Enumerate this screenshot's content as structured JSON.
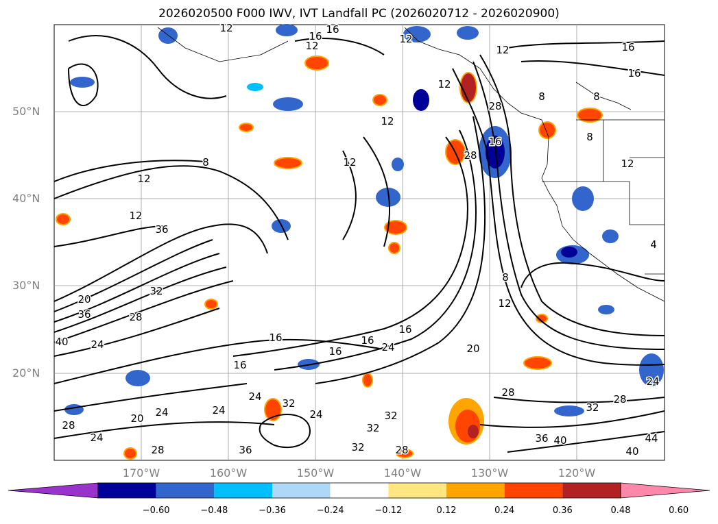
{
  "title": "2026020500 F000 IWV, IVT Landfall PC (2026020712 - 2026020900)",
  "lat_labels": [
    "50°N",
    "40°N",
    "30°N",
    "20°N"
  ],
  "lon_labels": [
    "170°W",
    "160°W",
    "150°W",
    "140°W",
    "130°W",
    "120°W"
  ],
  "colorbar": {
    "ticks": [
      "−0.60",
      "−0.48",
      "−0.36",
      "−0.24",
      "−0.12",
      "0.12",
      "0.24",
      "0.36",
      "0.48",
      "0.60"
    ],
    "colors": [
      "#9933cc",
      "#000099",
      "#3366cc",
      "#00bfff",
      "#add8f7",
      "#ffffff",
      "#ffe680",
      "#ffa500",
      "#ff4500",
      "#b22222",
      "#ff88aa"
    ]
  },
  "contour_labels": [
    "12",
    "16",
    "12",
    "16",
    "12",
    "12",
    "16",
    "12",
    "16",
    "8",
    "12",
    "28",
    "8",
    "16",
    "8",
    "12",
    "8",
    "12",
    "28",
    "12",
    "12",
    "36",
    "32",
    "28",
    "20",
    "36",
    "40",
    "24",
    "16",
    "16",
    "16",
    "16",
    "24",
    "20",
    "12",
    "8",
    "16",
    "24",
    "32",
    "24",
    "20",
    "24",
    "28",
    "24",
    "32",
    "28",
    "32",
    "32",
    "24",
    "28",
    "32",
    "36",
    "28",
    "36",
    "40",
    "44",
    "40",
    "24",
    "4",
    "28"
  ]
}
